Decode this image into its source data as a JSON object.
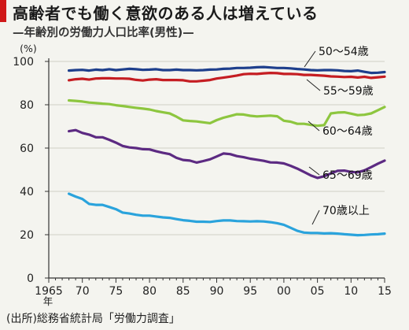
{
  "header": {
    "title": "高齢者でも働く意欲のある人は増えている",
    "subtitle": "—年齢別の労働力人口比率(男性)—"
  },
  "source": "(出所)総務省統計局「労働力調査」",
  "colors": {
    "title_accent": "#d01818",
    "grid": "#cfcfc4",
    "axis": "#333333",
    "s50_54": "#1e3f8c",
    "s55_59": "#c51d22",
    "s60_64": "#8dc63f",
    "s65_69": "#5c2a82",
    "s70plus": "#2aa3dc"
  },
  "chart_data": {
    "type": "line",
    "title": "高齢者でも働く意欲のある人は増えている",
    "subtitle": "—年齢別の労働力人口比率(男性)—",
    "ylabel": "(%)",
    "xlabel_unit": "年",
    "ylim": [
      0,
      100
    ],
    "xlim": [
      1965,
      2015
    ],
    "yticks": [
      0,
      20,
      40,
      60,
      80,
      100
    ],
    "xticks": [
      {
        "value": 1965,
        "label": "1965"
      },
      {
        "value": 1970,
        "label": "70"
      },
      {
        "value": 1975,
        "label": "75"
      },
      {
        "value": 1980,
        "label": "80"
      },
      {
        "value": 1985,
        "label": "85"
      },
      {
        "value": 1990,
        "label": "90"
      },
      {
        "value": 1995,
        "label": "95"
      },
      {
        "value": 2000,
        "label": "00"
      },
      {
        "value": 2005,
        "label": "05"
      },
      {
        "value": 2010,
        "label": "10"
      },
      {
        "value": 2015,
        "label": "15"
      }
    ],
    "grid": true,
    "x": [
      1968,
      1969,
      1970,
      1971,
      1972,
      1973,
      1974,
      1975,
      1976,
      1977,
      1978,
      1979,
      1980,
      1981,
      1982,
      1983,
      1984,
      1985,
      1986,
      1987,
      1988,
      1989,
      1990,
      1991,
      1992,
      1993,
      1994,
      1995,
      1996,
      1997,
      1998,
      1999,
      2000,
      2001,
      2002,
      2003,
      2004,
      2005,
      2006,
      2007,
      2008,
      2009,
      2010,
      2011,
      2012,
      2013,
      2014,
      2015
    ],
    "series": [
      {
        "name": "50〜54歳",
        "color_key": "s50_54",
        "values": [
          95.8,
          96.0,
          96.1,
          95.8,
          96.2,
          96.0,
          96.4,
          96.0,
          96.3,
          96.6,
          96.4,
          96.1,
          96.2,
          96.4,
          96.0,
          96.0,
          96.2,
          96.0,
          96.0,
          95.9,
          96.0,
          96.2,
          96.3,
          96.6,
          96.7,
          97.0,
          97.0,
          97.1,
          97.3,
          97.4,
          97.2,
          97.0,
          97.0,
          96.8,
          96.5,
          96.3,
          96.0,
          95.9,
          96.0,
          96.0,
          95.9,
          95.6,
          95.5,
          95.8,
          95.2,
          94.7,
          94.8,
          95.1
        ]
      },
      {
        "name": "55〜59歳",
        "color_key": "s55_59",
        "values": [
          91.3,
          91.8,
          92.0,
          91.6,
          92.1,
          92.2,
          92.2,
          92.1,
          92.1,
          92.0,
          91.5,
          91.2,
          91.6,
          91.8,
          91.4,
          91.4,
          91.4,
          91.3,
          90.8,
          90.8,
          91.1,
          91.4,
          92.1,
          92.5,
          93.0,
          93.5,
          94.1,
          94.3,
          94.2,
          94.5,
          94.7,
          94.6,
          94.2,
          94.2,
          94.1,
          93.8,
          93.8,
          93.6,
          93.4,
          93.1,
          93.0,
          92.8,
          92.9,
          92.6,
          92.9,
          92.4,
          92.7,
          93.0
        ]
      },
      {
        "name": "60〜64歳",
        "color_key": "s60_64",
        "values": [
          82.0,
          81.8,
          81.5,
          81.0,
          80.8,
          80.5,
          80.3,
          79.8,
          79.4,
          79.0,
          78.6,
          78.2,
          77.8,
          77.1,
          76.5,
          76.0,
          74.5,
          72.8,
          72.5,
          72.3,
          71.9,
          71.5,
          72.9,
          74.0,
          74.8,
          75.6,
          75.5,
          74.9,
          74.6,
          74.8,
          75.0,
          74.7,
          72.6,
          72.2,
          71.2,
          71.2,
          70.7,
          70.3,
          70.6,
          76.0,
          76.4,
          76.5,
          75.9,
          75.2,
          75.4,
          76.0,
          77.5,
          79.0
        ]
      },
      {
        "name": "65〜69歳",
        "color_key": "s65_69",
        "values": [
          67.8,
          68.3,
          67.0,
          66.2,
          65.0,
          65.0,
          63.8,
          62.5,
          61.0,
          60.3,
          60.0,
          59.5,
          59.4,
          58.5,
          57.8,
          57.2,
          55.5,
          54.5,
          54.2,
          53.3,
          54.0,
          54.8,
          56.1,
          57.5,
          57.2,
          56.3,
          55.8,
          55.1,
          54.6,
          54.1,
          53.4,
          53.3,
          52.9,
          51.8,
          50.5,
          49.0,
          47.4,
          46.2,
          47.0,
          48.3,
          49.5,
          49.6,
          49.0,
          48.8,
          49.7,
          51.2,
          52.8,
          54.2
        ]
      },
      {
        "name": "70歳以上",
        "color_key": "s70plus",
        "values": [
          38.9,
          37.6,
          36.5,
          34.2,
          33.8,
          33.8,
          32.8,
          31.8,
          30.2,
          29.8,
          29.2,
          28.8,
          28.8,
          28.4,
          28.0,
          27.8,
          27.2,
          26.7,
          26.4,
          26.0,
          26.0,
          25.9,
          26.3,
          26.6,
          26.6,
          26.3,
          26.2,
          26.1,
          26.2,
          26.1,
          25.8,
          25.3,
          24.6,
          23.2,
          21.8,
          21.0,
          20.8,
          20.8,
          20.6,
          20.7,
          20.5,
          20.2,
          20.0,
          19.8,
          19.9,
          20.1,
          20.2,
          20.5
        ]
      }
    ]
  }
}
